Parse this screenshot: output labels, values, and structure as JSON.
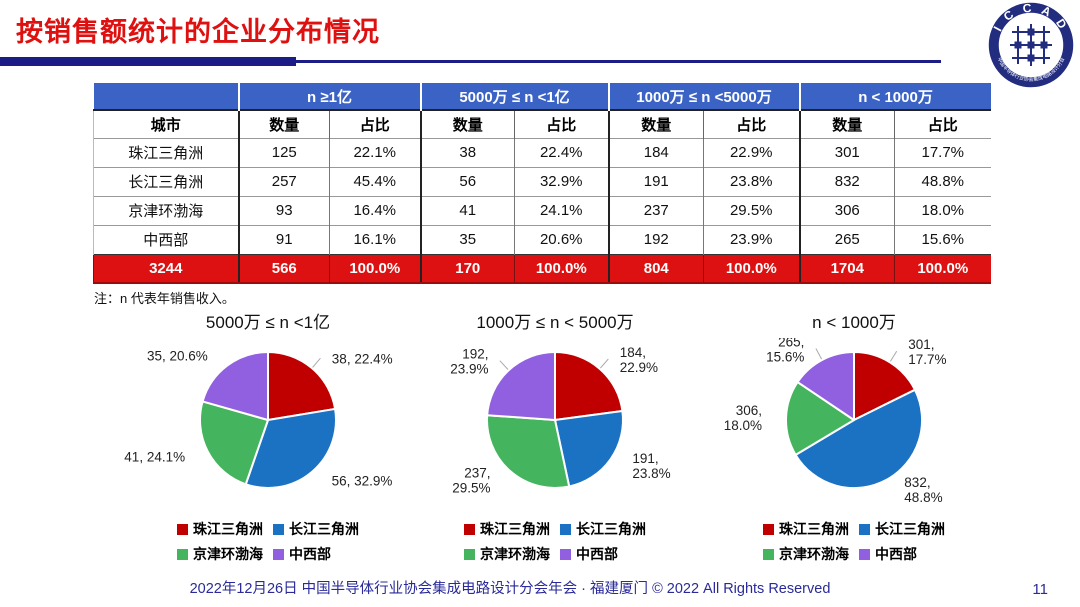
{
  "header": {
    "title": "按销售额统计的企业分布情况",
    "logo_name": "ICCAD",
    "logo_arc_text": "I C C A D",
    "logo_ring_text": "中国半导体行业协会集成电路设计分会"
  },
  "table": {
    "group_headers": [
      "n ≥1亿",
      "5000万 ≤ n <1亿",
      "1000万 ≤ n <5000万",
      "n < 1000万"
    ],
    "sub_headers": [
      "城市",
      "数量",
      "占比",
      "数量",
      "占比",
      "数量",
      "占比",
      "数量",
      "占比"
    ],
    "rows": [
      {
        "city": "珠江三角洲",
        "values": [
          "125",
          "22.1%",
          "38",
          "22.4%",
          "184",
          "22.9%",
          "301",
          "17.7%"
        ]
      },
      {
        "city": "长江三角洲",
        "values": [
          "257",
          "45.4%",
          "56",
          "32.9%",
          "191",
          "23.8%",
          "832",
          "48.8%"
        ]
      },
      {
        "city": "京津环渤海",
        "values": [
          "93",
          "16.4%",
          "41",
          "24.1%",
          "237",
          "29.5%",
          "306",
          "18.0%"
        ]
      },
      {
        "city": "中西部",
        "values": [
          "91",
          "16.1%",
          "35",
          "20.6%",
          "192",
          "23.9%",
          "265",
          "15.6%"
        ]
      }
    ],
    "total_row": {
      "city": "3244",
      "values": [
        "566",
        "100.0%",
        "170",
        "100.0%",
        "804",
        "100.0%",
        "1704",
        "100.0%"
      ]
    }
  },
  "note": "注：n 代表年销售收入。",
  "colors": {
    "title_red": "#de1010",
    "navy": "#1c1c86",
    "header_blue": "#3b63c6",
    "total_red": "#dd1111",
    "pie_series": [
      "#c00000",
      "#1c72c2",
      "#45b45e",
      "#9160e0"
    ]
  },
  "legend": [
    "珠江三角洲",
    "长江三角洲",
    "京津环渤海",
    "中西部"
  ],
  "chart_data": [
    {
      "type": "pie",
      "title": "5000万 ≤ n <1亿",
      "legend_position": "bottom",
      "slices": [
        {
          "name": "珠江三角洲",
          "value": 38,
          "pct": 22.4,
          "label_lines": [
            "38, 22.4%"
          ],
          "leader": true
        },
        {
          "name": "长江三角洲",
          "value": 56,
          "pct": 32.9,
          "label_lines": [
            "56, 32.9%"
          ],
          "leader": false
        },
        {
          "name": "京津环渤海",
          "value": 41,
          "pct": 24.1,
          "label_lines": [
            "41, 24.1%"
          ],
          "leader": false
        },
        {
          "name": "中西部",
          "value": 35,
          "pct": 20.6,
          "label_lines": [
            "35, 20.6%"
          ],
          "leader": false
        }
      ]
    },
    {
      "type": "pie",
      "title": "1000万 ≤ n < 5000万",
      "legend_position": "bottom",
      "slices": [
        {
          "name": "珠江三角洲",
          "value": 184,
          "pct": 22.9,
          "label_lines": [
            "184,",
            "22.9%"
          ],
          "leader": true
        },
        {
          "name": "长江三角洲",
          "value": 191,
          "pct": 23.8,
          "label_lines": [
            "191,",
            "23.8%"
          ],
          "leader": false
        },
        {
          "name": "京津环渤海",
          "value": 237,
          "pct": 29.5,
          "label_lines": [
            "237,",
            "29.5%"
          ],
          "leader": false
        },
        {
          "name": "中西部",
          "value": 192,
          "pct": 23.9,
          "label_lines": [
            "192,",
            "23.9%"
          ],
          "leader": true
        }
      ]
    },
    {
      "type": "pie",
      "title": "n < 1000万",
      "legend_position": "bottom",
      "slices": [
        {
          "name": "珠江三角洲",
          "value": 301,
          "pct": 17.7,
          "label_lines": [
            "301,",
            "17.7%"
          ],
          "leader": true
        },
        {
          "name": "长江三角洲",
          "value": 832,
          "pct": 48.8,
          "label_lines": [
            "832,",
            "48.8%"
          ],
          "leader": false
        },
        {
          "name": "京津环渤海",
          "value": 306,
          "pct": 18.0,
          "label_lines": [
            "306,",
            "18.0%"
          ],
          "leader": false
        },
        {
          "name": "中西部",
          "value": 265,
          "pct": 15.6,
          "label_lines": [
            "265,",
            "15.6%"
          ],
          "leader": true
        }
      ]
    }
  ],
  "footer": {
    "text": "2022年12月26日 中国半导体行业协会集成电路设计分会年会 · 福建厦门 © 2022 All Rights Reserved",
    "page": "11"
  }
}
